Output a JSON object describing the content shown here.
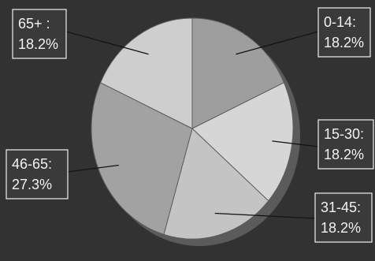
{
  "chart_data": {
    "type": "pie",
    "title": "",
    "categories": [
      "0-14",
      "15-30",
      "31-45",
      "46-65",
      "65+"
    ],
    "category_labels": [
      "0-14:",
      "15-30:",
      "31-45:",
      "46-65:",
      "65+ :"
    ],
    "values": [
      18.2,
      18.2,
      18.2,
      27.3,
      18.2
    ],
    "value_labels": [
      "18.2%",
      "18.2%",
      "18.2%",
      "27.3%",
      "18.2%"
    ],
    "colors": [
      "#9e9e9e",
      "#d6d6d6",
      "#c4c4c4",
      "#a2a2a2",
      "#cecece"
    ],
    "start_angle_deg": 0,
    "direction": "clockwise",
    "shadow": true,
    "legend": "none"
  }
}
